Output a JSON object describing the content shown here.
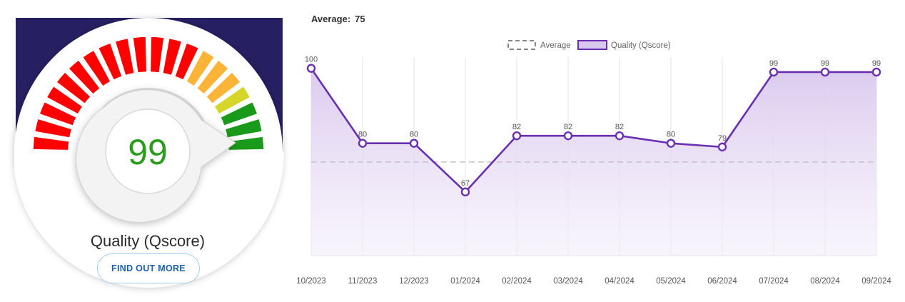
{
  "gauge": {
    "score": "99",
    "label": "Quality (Qscore)",
    "button_label": "FIND OUT MORE",
    "colors": {
      "background": "#261f62",
      "red": "#ff0000",
      "orange": "#fbb438",
      "yellow": "#d6d62a",
      "green": "#1a9a1a",
      "score_text": "#2a9d1d"
    }
  },
  "average_header": {
    "label": "Average:",
    "value": "75"
  },
  "chart_data": {
    "type": "line",
    "categories": [
      "10/2023",
      "11/2023",
      "12/2023",
      "01/2024",
      "02/2024",
      "03/2024",
      "04/2024",
      "05/2024",
      "06/2024",
      "07/2024",
      "08/2024",
      "09/2024"
    ],
    "series": [
      {
        "name": "Quality (Qscore)",
        "values": [
          100,
          80,
          80,
          67,
          82,
          82,
          82,
          80,
          79,
          99,
          99,
          99
        ],
        "color": "#6a2fb0",
        "fill": "area"
      },
      {
        "name": "Average",
        "values": [
          75,
          75,
          75,
          75,
          75,
          75,
          75,
          75,
          75,
          75,
          75,
          75
        ],
        "color": "#bbbbbb",
        "style": "dashed"
      }
    ],
    "data_labels": [
      "100",
      "80",
      "80",
      "67",
      "82",
      "82",
      "82",
      "80",
      "79",
      "99",
      "99",
      "99"
    ],
    "legend": [
      "Average",
      "Quality (Qscore)"
    ],
    "legend_position": "top-center",
    "ylim": [
      50,
      103
    ],
    "grid": true,
    "title": "",
    "xlabel": "",
    "ylabel": ""
  }
}
